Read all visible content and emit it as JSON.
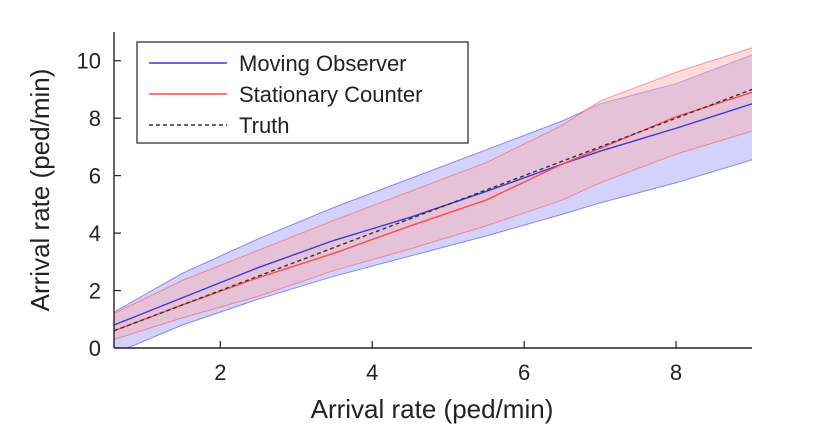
{
  "chart_data": {
    "type": "line",
    "xlabel": "Arrival rate (ped/min)",
    "ylabel": "Arrival rate (ped/min)",
    "xlim": [
      0.6,
      9.0
    ],
    "ylim": [
      0,
      11
    ],
    "xticks": [
      2,
      4,
      6,
      8
    ],
    "yticks": [
      0,
      2,
      4,
      6,
      8,
      10
    ],
    "grid": false,
    "legend_position": "top-left",
    "series": [
      {
        "name": "Moving Observer",
        "color": "#3a3ae0",
        "style": "solid",
        "x": [
          0.6,
          1.5,
          2.5,
          3.5,
          4.5,
          5.5,
          6.5,
          7.0,
          8.0,
          9.0
        ],
        "y": [
          0.8,
          1.75,
          2.8,
          3.75,
          4.55,
          5.45,
          6.4,
          6.85,
          7.65,
          8.5
        ],
        "band_lower": [
          -0.2,
          0.8,
          1.7,
          2.5,
          3.2,
          3.9,
          4.65,
          5.05,
          5.75,
          6.55
        ],
        "band_upper": [
          1.25,
          2.6,
          3.8,
          4.9,
          5.9,
          6.9,
          7.9,
          8.5,
          9.2,
          10.2
        ],
        "band_color": "#9c9cf4"
      },
      {
        "name": "Stationary Counter",
        "color": "#ff4a4a",
        "style": "solid",
        "x": [
          0.6,
          1.5,
          2.5,
          3.5,
          4.5,
          5.5,
          6.5,
          7.0,
          8.0,
          9.0
        ],
        "y": [
          0.6,
          1.5,
          2.45,
          3.3,
          4.25,
          5.15,
          6.4,
          6.95,
          8.05,
          8.9
        ],
        "band_lower": [
          0.3,
          1.05,
          1.8,
          2.7,
          3.45,
          4.25,
          5.15,
          5.75,
          6.75,
          7.55
        ],
        "band_upper": [
          1.2,
          2.35,
          3.4,
          4.45,
          5.45,
          6.45,
          7.75,
          8.6,
          9.6,
          10.45
        ],
        "band_color": "#ffb0b0"
      },
      {
        "name": "Truth",
        "color": "#333333",
        "style": "dashed",
        "x": [
          0.6,
          9.0
        ],
        "y": [
          0.6,
          9.0
        ]
      }
    ]
  }
}
